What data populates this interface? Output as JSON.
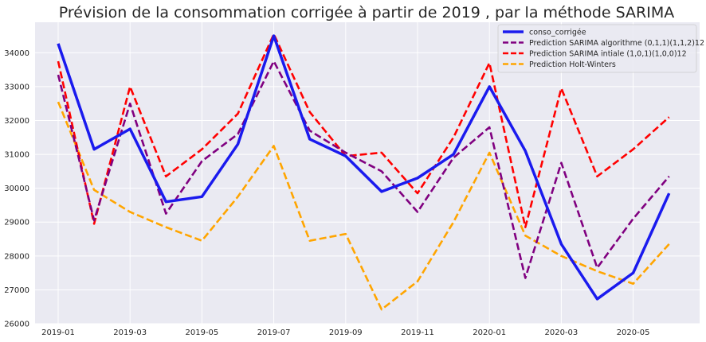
{
  "chart_data": {
    "type": "line",
    "title": "Prévision de la consommation corrigée à partir de 2019 , par la méthode SARIMA",
    "xlabel": "",
    "ylabel": "",
    "x": [
      "2019-01",
      "2019-02",
      "2019-03",
      "2019-04",
      "2019-05",
      "2019-06",
      "2019-07",
      "2019-08",
      "2019-09",
      "2019-10",
      "2019-11",
      "2019-12",
      "2020-01",
      "2020-02",
      "2020-03",
      "2020-04",
      "2020-05",
      "2020-06"
    ],
    "x_ticks": [
      "2019-01",
      "2019-03",
      "2019-05",
      "2019-07",
      "2019-09",
      "2019-11",
      "2020-01",
      "2020-03",
      "2020-05"
    ],
    "ylim": [
      26000,
      34900
    ],
    "y_ticks": [
      26000,
      27000,
      28000,
      29000,
      30000,
      31000,
      32000,
      33000,
      34000
    ],
    "grid": true,
    "legend_position": "top-right",
    "series": [
      {
        "name": "conso_corrigée",
        "color": "#1a1aee",
        "style": "solid",
        "values": [
          34270,
          31150,
          31750,
          29600,
          29750,
          31300,
          34500,
          31450,
          30950,
          29900,
          30300,
          31000,
          33000,
          31100,
          28350,
          26730,
          27500,
          29850
        ]
      },
      {
        "name": "Prediction SARIMA algorithme (0,1,1)(1,1,2)12",
        "color": "#800080",
        "style": "dashed",
        "values": [
          33350,
          29050,
          32500,
          29250,
          30800,
          31600,
          33750,
          31700,
          31050,
          30500,
          29300,
          30900,
          31800,
          27350,
          30750,
          27650,
          29100,
          30350
        ]
      },
      {
        "name": "Prediction SARIMA intiale (1,0,1)(1,0,0)12",
        "color": "#ff0000",
        "style": "dashed",
        "values": [
          33750,
          28950,
          33000,
          30350,
          31150,
          32200,
          34550,
          32250,
          30950,
          31050,
          29850,
          31500,
          33700,
          28850,
          32950,
          30350,
          31150,
          32100
        ]
      },
      {
        "name": "Prediction Holt-Winters",
        "color": "#ffa500",
        "style": "dashed",
        "values": [
          32550,
          29950,
          29300,
          28850,
          28450,
          29750,
          31250,
          28450,
          28650,
          26420,
          27250,
          29000,
          31050,
          28600,
          28000,
          27550,
          27180,
          28350
        ]
      }
    ]
  }
}
